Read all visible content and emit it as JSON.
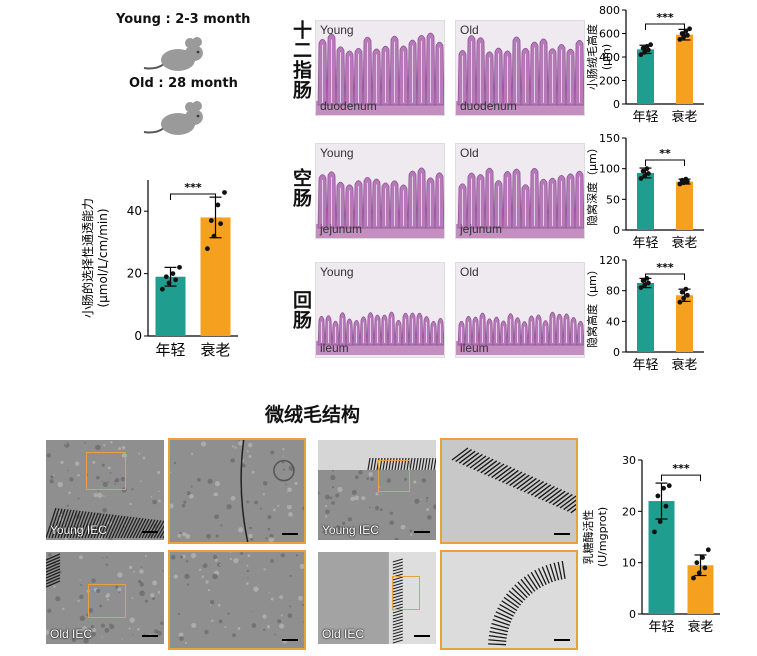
{
  "mouse_panel": {
    "young_label": "Young : 2-3 month",
    "old_label": "Old : 28 month"
  },
  "segments": [
    {
      "name": "十二指肠",
      "young_tag": "Young",
      "old_tag": "Old",
      "tissue": "duodenum"
    },
    {
      "name": "空肠",
      "young_tag": "Young",
      "old_tag": "Old",
      "tissue": "jejunum"
    },
    {
      "name": "回肠",
      "young_tag": "Young",
      "old_tag": "Old",
      "tissue": "ileum"
    }
  ],
  "section_title": "微绒毛结构",
  "tem_labels": {
    "young": "Young IEC",
    "old": "Old IEC"
  },
  "colors": {
    "young": "#1f9e8f",
    "old": "#f5a01e",
    "zoom_frame": "#e6a23c"
  },
  "chart_data": [
    {
      "id": "permeability",
      "type": "bar",
      "ylabel": "小肠的选择性通透能力\n(μmol/L/cm/min)",
      "categories": [
        "年轻",
        "衰老"
      ],
      "values": [
        19,
        38
      ],
      "errors": [
        3,
        6.5
      ],
      "points": [
        [
          15,
          17,
          18,
          19,
          20,
          22
        ],
        [
          28,
          32,
          36,
          37,
          42,
          46
        ]
      ],
      "ylim": [
        0,
        50
      ],
      "yticks": [
        0,
        20,
        40
      ],
      "significance": "***"
    },
    {
      "id": "villus_height",
      "type": "bar",
      "ylabel": "小肠绒毛高度\n(μm)",
      "categories": [
        "年轻",
        "衰老"
      ],
      "values": [
        465,
        590
      ],
      "errors": [
        35,
        45
      ],
      "points": [
        [
          420,
          440,
          460,
          475,
          490,
          505
        ],
        [
          550,
          570,
          585,
          600,
          620,
          640
        ]
      ],
      "ylim": [
        0,
        800
      ],
      "yticks": [
        0,
        200,
        400,
        600,
        800
      ],
      "significance": "***"
    },
    {
      "id": "crypt_depth",
      "type": "bar",
      "ylabel": "隐窝深度（μm）",
      "categories": [
        "年轻",
        "衰老"
      ],
      "values": [
        93,
        79
      ],
      "errors": [
        8,
        4
      ],
      "points": [
        [
          84,
          88,
          92,
          96,
          100
        ],
        [
          75,
          77,
          79,
          81,
          83
        ]
      ],
      "ylim": [
        0,
        150
      ],
      "yticks": [
        0,
        50,
        100,
        150
      ],
      "significance": "**"
    },
    {
      "id": "crypt_height",
      "type": "bar",
      "ylabel": "隐窝高度（μm）",
      "categories": [
        "年轻",
        "衰老"
      ],
      "values": [
        90,
        74
      ],
      "errors": [
        6,
        8
      ],
      "points": [
        [
          84,
          87,
          90,
          93,
          96
        ],
        [
          65,
          70,
          74,
          78,
          82
        ]
      ],
      "ylim": [
        0,
        120
      ],
      "yticks": [
        0,
        40,
        80,
        120
      ],
      "significance": "***"
    },
    {
      "id": "lactase",
      "type": "bar",
      "ylabel": "乳糖酶活性\n(U/mgprot)",
      "categories": [
        "年轻",
        "衰老"
      ],
      "values": [
        22,
        9.5
      ],
      "errors": [
        3.5,
        2
      ],
      "points": [
        [
          16,
          18,
          21,
          23,
          24.5,
          25
        ],
        [
          7,
          8,
          9,
          10,
          11,
          12.5
        ]
      ],
      "ylim": [
        0,
        30
      ],
      "yticks": [
        0,
        10,
        20,
        30
      ],
      "significance": "***"
    }
  ]
}
